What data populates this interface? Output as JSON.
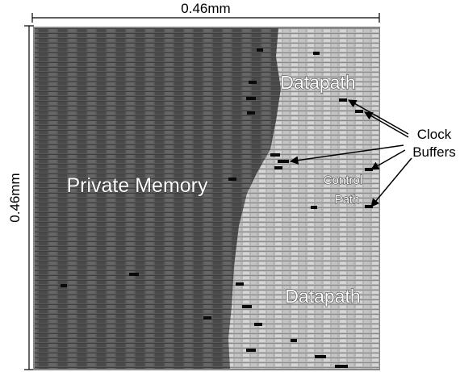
{
  "dimensions": {
    "width": "0.46mm",
    "height": "0.46mm"
  },
  "regions": {
    "private_memory": "Private Memory",
    "datapath_top": "Datapath",
    "datapath_bottom": "Datapath",
    "control_path": [
      "Control",
      "Path"
    ]
  },
  "annotation": [
    "Clock",
    "Buffers"
  ]
}
